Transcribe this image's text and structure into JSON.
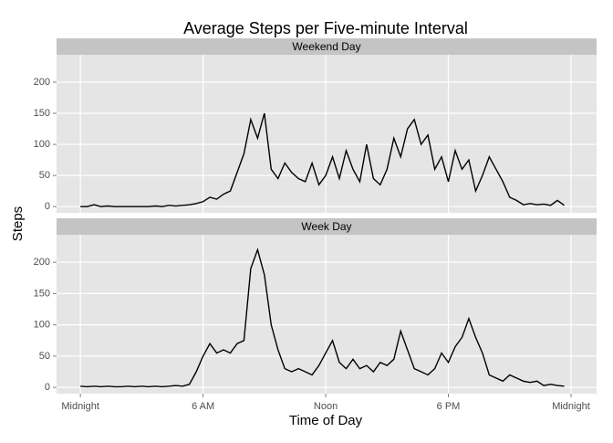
{
  "chart_data": {
    "type": "line",
    "title": "Average Steps per Five-minute Interval",
    "x_label": "Time of Day",
    "y_label": "Steps",
    "x": [
      0,
      20,
      40,
      60,
      80,
      100,
      120,
      140,
      160,
      180,
      200,
      220,
      240,
      260,
      280,
      300,
      320,
      340,
      360,
      380,
      400,
      420,
      440,
      460,
      480,
      500,
      520,
      540,
      560,
      580,
      600,
      620,
      640,
      660,
      680,
      700,
      720,
      740,
      760,
      780,
      800,
      820,
      840,
      860,
      880,
      900,
      920,
      940,
      960,
      980,
      1000,
      1020,
      1040,
      1060,
      1080,
      1100,
      1120,
      1140,
      1160,
      1180,
      1200,
      1220,
      1240,
      1260,
      1280,
      1300,
      1320,
      1340,
      1360,
      1380,
      1400,
      1420
    ],
    "xlim": [
      -70,
      1515
    ],
    "xticks": [
      {
        "value": 0,
        "label": "Midnight"
      },
      {
        "value": 360,
        "label": "6 AM"
      },
      {
        "value": 720,
        "label": "Noon"
      },
      {
        "value": 1080,
        "label": "6 PM"
      },
      {
        "value": 1440,
        "label": "Midnight"
      }
    ],
    "ylim": [
      -10,
      244
    ],
    "yticks": [
      0,
      50,
      100,
      150,
      200
    ],
    "grid": true,
    "series": [
      {
        "name": "Weekend Day",
        "color": "#000000",
        "values": [
          0,
          0,
          3,
          0,
          1,
          0,
          0,
          0,
          0,
          0,
          0,
          1,
          0,
          2,
          1,
          2,
          3,
          5,
          8,
          15,
          12,
          20,
          25,
          55,
          85,
          140,
          110,
          150,
          60,
          45,
          70,
          55,
          45,
          40,
          70,
          35,
          50,
          80,
          45,
          90,
          60,
          40,
          100,
          45,
          35,
          60,
          110,
          80,
          125,
          140,
          100,
          115,
          60,
          80,
          40,
          90,
          60,
          75,
          25,
          50,
          80,
          60,
          40,
          15,
          10,
          3,
          5,
          3,
          4,
          2,
          10,
          2
        ]
      },
      {
        "name": "Week Day",
        "color": "#000000",
        "values": [
          2,
          1,
          2,
          1,
          2,
          1,
          1,
          2,
          1,
          2,
          1,
          2,
          1,
          2,
          3,
          2,
          5,
          25,
          50,
          70,
          55,
          60,
          55,
          70,
          75,
          190,
          220,
          180,
          100,
          60,
          30,
          25,
          30,
          25,
          20,
          35,
          55,
          75,
          40,
          30,
          45,
          30,
          35,
          25,
          40,
          35,
          45,
          90,
          60,
          30,
          25,
          20,
          30,
          55,
          40,
          65,
          80,
          110,
          80,
          55,
          20,
          15,
          10,
          20,
          15,
          10,
          8,
          10,
          3,
          5,
          3,
          2
        ]
      }
    ]
  }
}
